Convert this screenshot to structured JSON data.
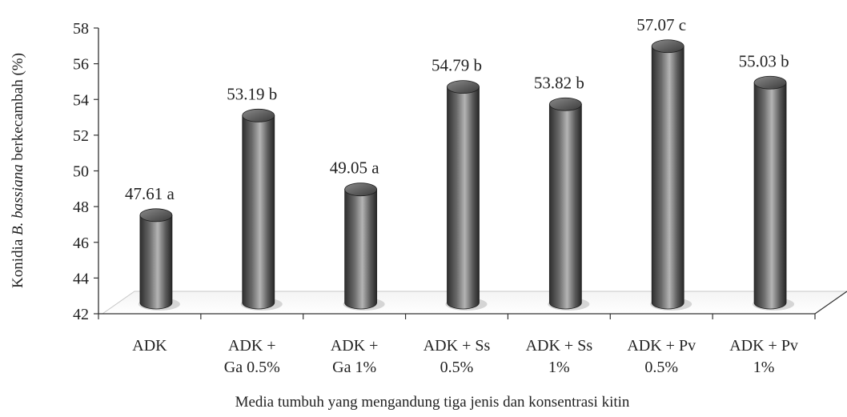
{
  "chart_data": {
    "type": "bar",
    "title": "",
    "xlabel": "Media tumbuh yang mengandung tiga jenis dan konsentrasi kitin",
    "ylabel": {
      "prefix": "Konidia ",
      "italic": "B. bassiana",
      "suffix": " berkecambah  (%)"
    },
    "ylim": [
      42,
      58
    ],
    "yticks": [
      42,
      44,
      46,
      48,
      50,
      52,
      54,
      56,
      58
    ],
    "grid": false,
    "legend": "none",
    "categories": [
      [
        "ADK"
      ],
      [
        "ADK +",
        "Ga 0.5%"
      ],
      [
        "ADK +",
        "Ga 1%"
      ],
      [
        "ADK + Ss",
        "0.5%"
      ],
      [
        "ADK + Ss",
        "1%"
      ],
      [
        "ADK + Pv",
        "0.5%"
      ],
      [
        "ADK + Pv",
        "1%"
      ]
    ],
    "values": [
      47.61,
      53.19,
      49.05,
      54.79,
      53.82,
      57.07,
      55.03
    ],
    "data_labels": [
      "47.61 a",
      "53.19 b",
      "49.05 a",
      "54.79 b",
      "53.82 b",
      "57.07 c",
      "55.03 b"
    ],
    "bar_color": "#6e6e6e"
  }
}
